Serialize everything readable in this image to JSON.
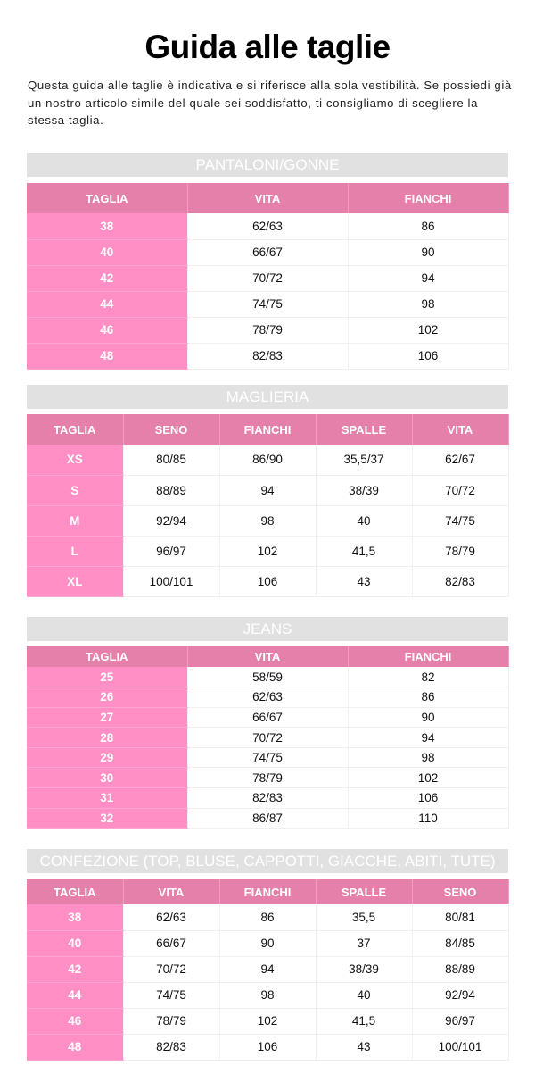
{
  "title": "Guida alle taglie",
  "intro": "Questa guida alle taglie è indicativa e si riferisce alla sola vestibilità. Se possiedi già un nostro articolo simile del quale sei soddisfatto, ti consigliamo di scegliere la stessa taglia.",
  "colors": {
    "header": "#e580aa",
    "size_column": "#ff8fc4",
    "band": "#e1e1e1"
  },
  "tables": [
    {
      "title": "PANTALONI/GONNE",
      "columns": [
        "TAGLIA",
        "VITA",
        "FIANCHI"
      ],
      "rows": [
        [
          "38",
          "62/63",
          "86"
        ],
        [
          "40",
          "66/67",
          "90"
        ],
        [
          "42",
          "70/72",
          "94"
        ],
        [
          "44",
          "74/75",
          "98"
        ],
        [
          "46",
          "78/79",
          "102"
        ],
        [
          "48",
          "82/83",
          "106"
        ]
      ]
    },
    {
      "title": "MAGLIERIA",
      "columns": [
        "TAGLIA",
        "SENO",
        "FIANCHI",
        "SPALLE",
        "VITA"
      ],
      "rows": [
        [
          "XS",
          "80/85",
          "86/90",
          "35,5/37",
          "62/67"
        ],
        [
          "S",
          "88/89",
          "94",
          "38/39",
          "70/72"
        ],
        [
          "M",
          "92/94",
          "98",
          "40",
          "74/75"
        ],
        [
          "L",
          "96/97",
          "102",
          "41,5",
          "78/79"
        ],
        [
          "XL",
          "100/101",
          "106",
          "43",
          "82/83"
        ]
      ]
    },
    {
      "title": "JEANS",
      "columns": [
        "TAGLIA",
        "VITA",
        "FIANCHI"
      ],
      "rows": [
        [
          "25",
          "58/59",
          "82"
        ],
        [
          "26",
          "62/63",
          "86"
        ],
        [
          "27",
          "66/67",
          "90"
        ],
        [
          "28",
          "70/72",
          "94"
        ],
        [
          "29",
          "74/75",
          "98"
        ],
        [
          "30",
          "78/79",
          "102"
        ],
        [
          "31",
          "82/83",
          "106"
        ],
        [
          "32",
          "86/87",
          "110"
        ]
      ]
    },
    {
      "title": "CONFEZIONE (TOP, BLUSE, CAPPOTTI, GIACCHE, ABITI, TUTE)",
      "columns": [
        "TAGLIA",
        "VITA",
        "FIANCHI",
        "SPALLE",
        "SENO"
      ],
      "rows": [
        [
          "38",
          "62/63",
          "86",
          "35,5",
          "80/81"
        ],
        [
          "40",
          "66/67",
          "90",
          "37",
          "84/85"
        ],
        [
          "42",
          "70/72",
          "94",
          "38/39",
          "88/89"
        ],
        [
          "44",
          "74/75",
          "98",
          "40",
          "92/94"
        ],
        [
          "46",
          "78/79",
          "102",
          "41,5",
          "96/97"
        ],
        [
          "48",
          "82/83",
          "106",
          "43",
          "100/101"
        ]
      ]
    }
  ]
}
